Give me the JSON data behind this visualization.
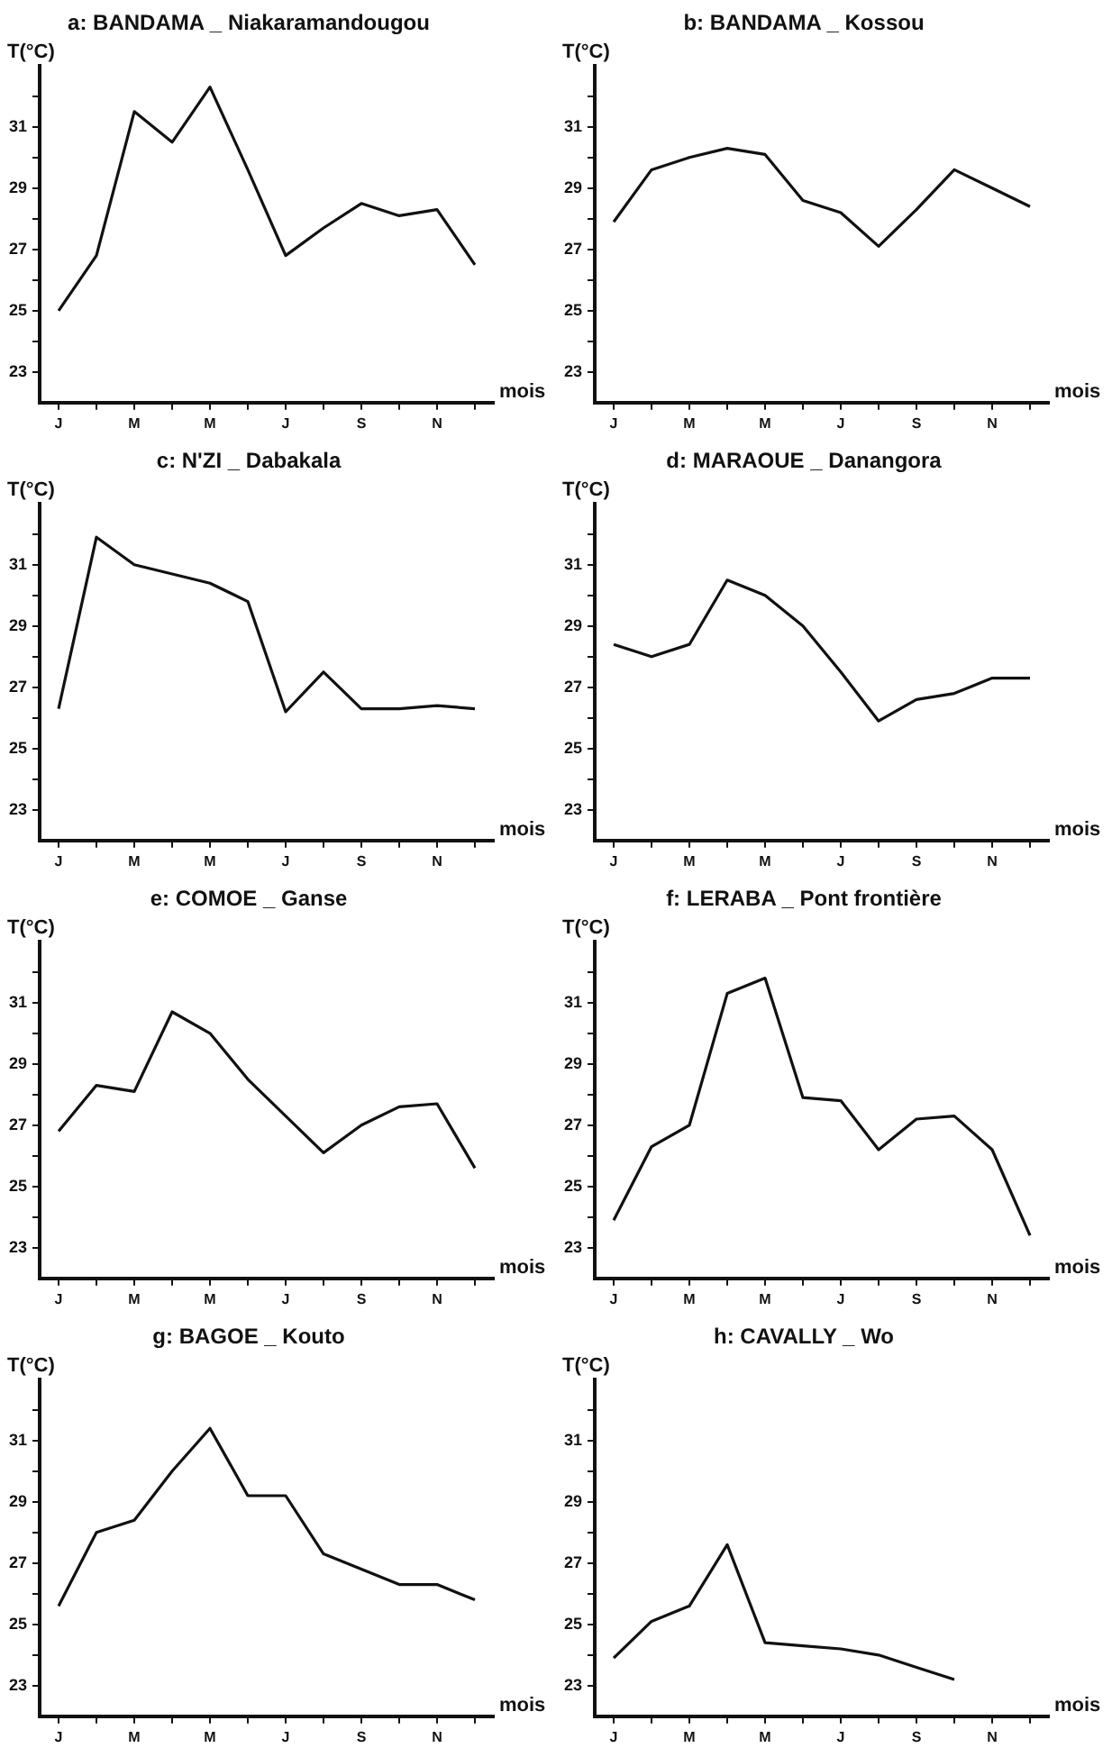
{
  "chart_data": [
    {
      "type": "line",
      "title": "a: BANDAMA _ Niakaramandougou",
      "xlabel": "mois",
      "ylabel": "T(°C)",
      "categories": [
        "J",
        null,
        "M",
        null,
        "M",
        null,
        "J",
        null,
        "S",
        null,
        "N",
        null
      ],
      "series": [
        {
          "color": "#111111",
          "values": [
            25.0,
            26.8,
            31.5,
            30.5,
            32.3,
            29.6,
            26.8,
            27.7,
            28.5,
            28.1,
            28.3,
            26.5
          ]
        }
      ],
      "ylim": [
        22,
        33
      ],
      "yticks": [
        23,
        {
          "value": 24,
          "label": null
        },
        25,
        {
          "value": 26,
          "label": null
        },
        27,
        {
          "value": 28,
          "label": null
        },
        29,
        {
          "value": 30,
          "label": null
        },
        31,
        {
          "value": 32,
          "label": null
        }
      ],
      "grid": false,
      "legend": false,
      "marker": "none"
    },
    {
      "type": "line",
      "title": "b: BANDAMA _ Kossou",
      "xlabel": "mois",
      "ylabel": "T(°C)",
      "categories": [
        "J",
        null,
        "M",
        null,
        "M",
        null,
        "J",
        null,
        "S",
        null,
        "N",
        null
      ],
      "series": [
        {
          "color": "#111111",
          "values": [
            27.9,
            29.6,
            30.0,
            30.3,
            30.1,
            28.6,
            28.2,
            27.1,
            28.3,
            29.6,
            29.0,
            28.4
          ]
        }
      ],
      "ylim": [
        22,
        33
      ],
      "yticks": [
        23,
        {
          "value": 24,
          "label": null
        },
        25,
        {
          "value": 26,
          "label": null
        },
        27,
        {
          "value": 28,
          "label": null
        },
        29,
        {
          "value": 30,
          "label": null
        },
        31,
        {
          "value": 32,
          "label": null
        }
      ],
      "grid": false,
      "legend": false,
      "marker": "none"
    },
    {
      "type": "line",
      "title": "c: N'ZI _ Dabakala",
      "xlabel": "mois",
      "ylabel": "T(°C)",
      "categories": [
        "J",
        null,
        "M",
        null,
        "M",
        null,
        "J",
        null,
        "S",
        null,
        "N",
        null
      ],
      "series": [
        {
          "color": "#111111",
          "values": [
            26.3,
            31.9,
            31.0,
            30.7,
            30.4,
            29.8,
            26.2,
            27.5,
            26.3,
            26.3,
            26.4,
            26.3
          ]
        }
      ],
      "ylim": [
        22,
        33
      ],
      "yticks": [
        23,
        {
          "value": 24,
          "label": null
        },
        25,
        {
          "value": 26,
          "label": null
        },
        27,
        {
          "value": 28,
          "label": null
        },
        29,
        {
          "value": 30,
          "label": null
        },
        31,
        {
          "value": 32,
          "label": null
        }
      ],
      "grid": false,
      "legend": false,
      "marker": "none"
    },
    {
      "type": "line",
      "title": "d: MARAOUE _ Danangora",
      "xlabel": "mois",
      "ylabel": "T(°C)",
      "categories": [
        "J",
        null,
        "M",
        null,
        "M",
        null,
        "J",
        null,
        "S",
        null,
        "N",
        null
      ],
      "series": [
        {
          "color": "#111111",
          "values": [
            28.4,
            28.0,
            28.4,
            30.5,
            30.0,
            29.0,
            27.5,
            25.9,
            26.6,
            26.8,
            27.3,
            27.3
          ]
        }
      ],
      "ylim": [
        22,
        33
      ],
      "yticks": [
        23,
        {
          "value": 24,
          "label": null
        },
        25,
        {
          "value": 26,
          "label": null
        },
        27,
        {
          "value": 28,
          "label": null
        },
        29,
        {
          "value": 30,
          "label": null
        },
        31,
        {
          "value": 32,
          "label": null
        }
      ],
      "grid": false,
      "legend": false,
      "marker": "none"
    },
    {
      "type": "line",
      "title": "e: COMOE _ Ganse",
      "xlabel": "mois",
      "ylabel": "T(°C)",
      "categories": [
        "J",
        null,
        "M",
        null,
        "M",
        null,
        "J",
        null,
        "S",
        null,
        "N",
        null
      ],
      "series": [
        {
          "color": "#111111",
          "values": [
            26.8,
            28.3,
            28.1,
            30.7,
            30.0,
            28.5,
            27.3,
            26.1,
            27.0,
            27.6,
            27.7,
            25.6
          ]
        }
      ],
      "ylim": [
        22,
        33
      ],
      "yticks": [
        23,
        {
          "value": 24,
          "label": null
        },
        25,
        {
          "value": 26,
          "label": null
        },
        27,
        {
          "value": 28,
          "label": null
        },
        29,
        {
          "value": 30,
          "label": null
        },
        31,
        {
          "value": 32,
          "label": null
        }
      ],
      "grid": false,
      "legend": false,
      "marker": "none"
    },
    {
      "type": "line",
      "title": "f: LERABA _ Pont frontière",
      "xlabel": "mois",
      "ylabel": "T(°C)",
      "categories": [
        "J",
        null,
        "M",
        null,
        "M",
        null,
        "J",
        null,
        "S",
        null,
        "N",
        null
      ],
      "series": [
        {
          "color": "#111111",
          "values": [
            23.9,
            26.3,
            27.0,
            31.3,
            31.8,
            27.9,
            27.8,
            26.2,
            27.2,
            27.3,
            26.2,
            23.4
          ]
        }
      ],
      "ylim": [
        22,
        33
      ],
      "yticks": [
        23,
        {
          "value": 24,
          "label": null
        },
        25,
        {
          "value": 26,
          "label": null
        },
        27,
        {
          "value": 28,
          "label": null
        },
        29,
        {
          "value": 30,
          "label": null
        },
        31,
        {
          "value": 32,
          "label": null
        }
      ],
      "grid": false,
      "legend": false,
      "marker": "none"
    },
    {
      "type": "line",
      "title": "g: BAGOE _ Kouto",
      "xlabel": "mois",
      "ylabel": "T(°C)",
      "categories": [
        "J",
        null,
        "M",
        null,
        "M",
        null,
        "J",
        null,
        "S",
        null,
        "N",
        null
      ],
      "series": [
        {
          "color": "#111111",
          "values": [
            25.6,
            28.0,
            28.4,
            30.0,
            31.4,
            29.2,
            29.2,
            27.3,
            26.8,
            26.3,
            26.3,
            25.8
          ]
        }
      ],
      "ylim": [
        22,
        33
      ],
      "yticks": [
        23,
        {
          "value": 24,
          "label": null
        },
        25,
        {
          "value": 26,
          "label": null
        },
        27,
        {
          "value": 28,
          "label": null
        },
        29,
        {
          "value": 30,
          "label": null
        },
        31,
        {
          "value": 32,
          "label": null
        }
      ],
      "grid": false,
      "legend": false,
      "marker": "none"
    },
    {
      "type": "line",
      "title": "h: CAVALLY _ Wo",
      "xlabel": "mois",
      "ylabel": "T(°C)",
      "categories": [
        "J",
        null,
        "M",
        null,
        "M",
        null,
        "J",
        null,
        "S",
        null,
        "N",
        null
      ],
      "series": [
        {
          "color": "#111111",
          "values": [
            23.9,
            25.1,
            25.6,
            27.6,
            24.4,
            24.3,
            24.2,
            24.0,
            23.6,
            23.2,
            null,
            null
          ]
        }
      ],
      "ylim": [
        22,
        33
      ],
      "yticks": [
        23,
        {
          "value": 24,
          "label": null
        },
        25,
        {
          "value": 26,
          "label": null
        },
        27,
        {
          "value": 28,
          "label": null
        },
        29,
        {
          "value": 30,
          "label": null
        },
        31,
        {
          "value": 32,
          "label": null
        }
      ],
      "grid": false,
      "legend": false,
      "marker": "none"
    }
  ]
}
